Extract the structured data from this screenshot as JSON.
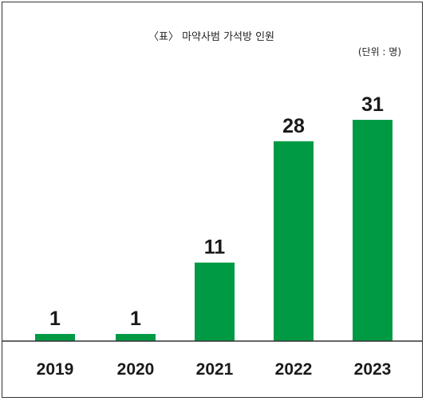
{
  "chart_data": {
    "type": "bar",
    "title": "〈표〉 마약사범 가석방 인원",
    "unit_label": "(단위 : 명)",
    "categories": [
      "2019",
      "2020",
      "2021",
      "2022",
      "2023"
    ],
    "values": [
      1,
      1,
      11,
      28,
      31
    ],
    "ylim": [
      0,
      31
    ],
    "grid": false,
    "legend": "none",
    "bar_color": "#009a44"
  }
}
